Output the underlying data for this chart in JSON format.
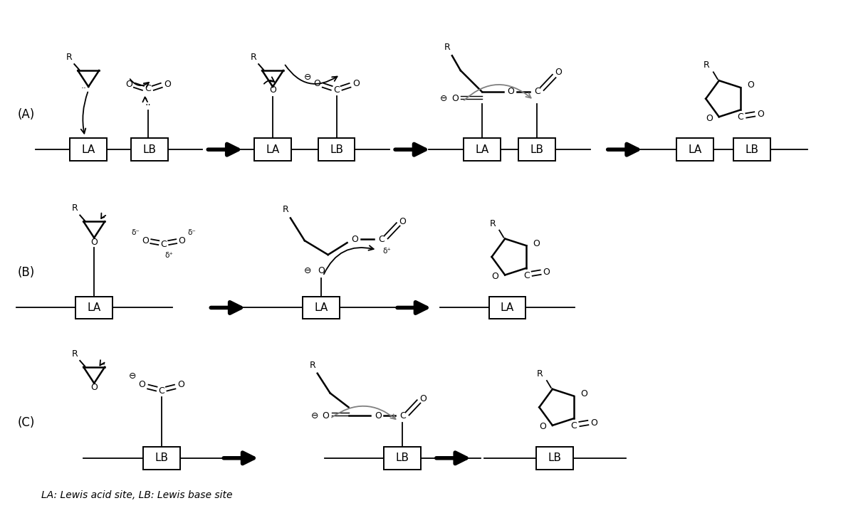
{
  "bg_color": "#ffffff",
  "line_color": "#000000",
  "text_color": "#000000",
  "label_A": "(A)",
  "label_B": "(B)",
  "label_C": "(C)",
  "footnote": "LA: Lewis acid site, LB: Lewis base site"
}
